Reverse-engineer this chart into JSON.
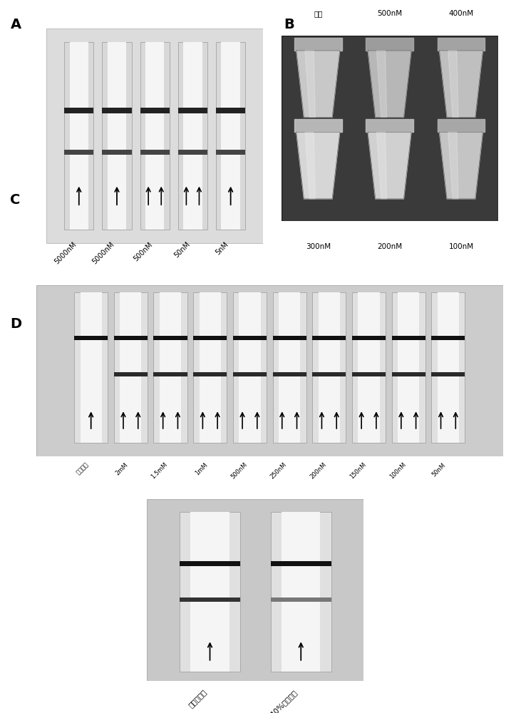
{
  "panel_A_label": "A",
  "panel_B_label": "B",
  "panel_C_label": "C",
  "panel_D_label": "D",
  "panel_A_labels": [
    "5000nM",
    "5000nM",
    "500nM",
    "50nM",
    "5nM"
  ],
  "panel_B_top_labels": [
    "对照",
    "500nM",
    "400nM"
  ],
  "panel_B_bot_labels": [
    "300nM",
    "200nM",
    "100nM"
  ],
  "panel_D_labels": [
    "阴性对照",
    "2mM",
    "1.5mM",
    "1mM",
    "500nM",
    "250nM",
    "200nM",
    "150nM",
    "100nM",
    "50nM"
  ],
  "panel_E_labels": [
    "检测缓冲液",
    "10%聚乙二醇"
  ],
  "bg_color": "#ffffff",
  "panel_label_fontsize": 14,
  "strip_label_fontsize": 7.0,
  "tube_label_fontsize": 7.5
}
